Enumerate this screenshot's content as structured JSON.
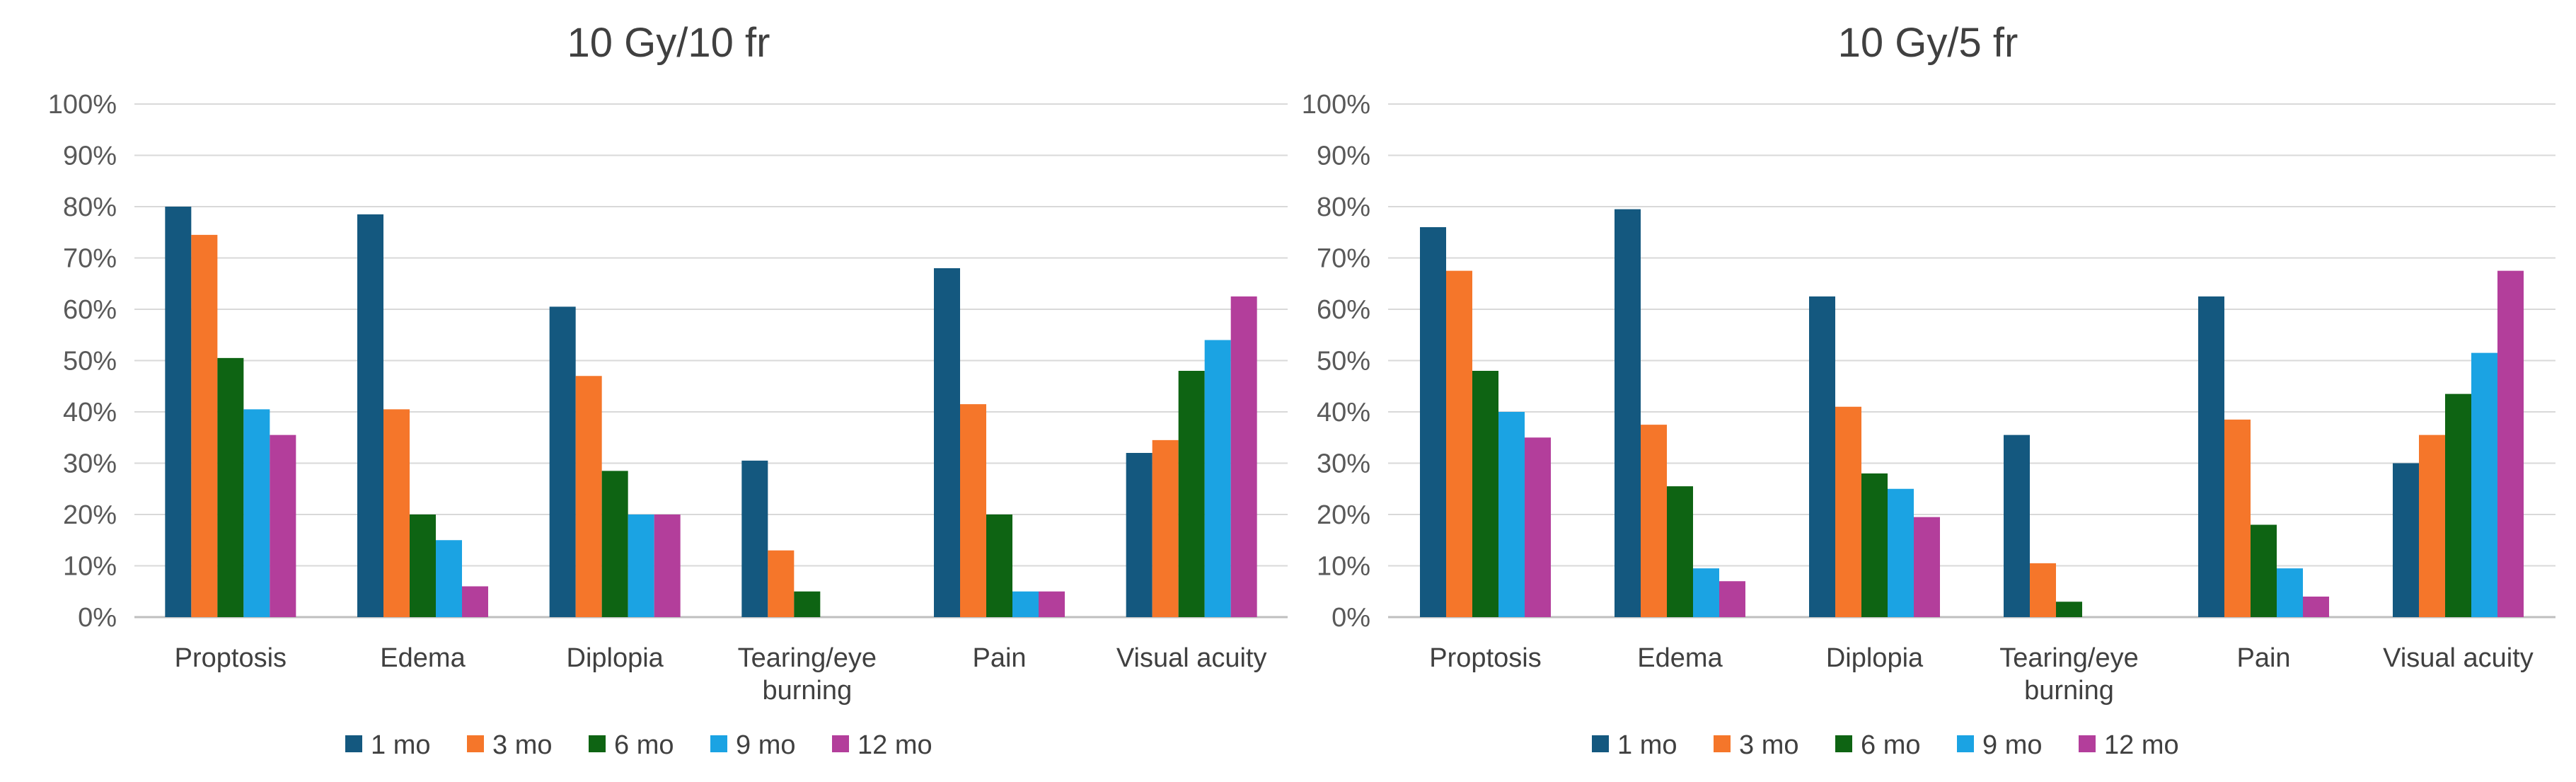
{
  "chart_data": [
    {
      "type": "bar",
      "title": "10 Gy/10 fr",
      "categories": [
        "Proptosis",
        "Edema",
        "Diplopia",
        "Tearing/eye burning",
        "Pain",
        "Visual acuity"
      ],
      "y_ticks": [
        "0%",
        "10%",
        "20%",
        "30%",
        "40%",
        "50%",
        "60%",
        "70%",
        "80%",
        "90%",
        "100%"
      ],
      "ylim": [
        0,
        100
      ],
      "grid": true,
      "legend_position": "bottom",
      "series": [
        {
          "name": "1 mo",
          "color": "#14587f",
          "values": [
            80,
            78.5,
            60.5,
            30.5,
            68,
            32
          ]
        },
        {
          "name": "3 mo",
          "color": "#f5762a",
          "values": [
            74.5,
            40.5,
            47,
            13,
            41.5,
            34.5
          ]
        },
        {
          "name": "6 mo",
          "color": "#0e6413",
          "values": [
            50.5,
            20,
            28.5,
            5,
            20,
            48
          ]
        },
        {
          "name": "9 mo",
          "color": "#1ba3e3",
          "values": [
            40.5,
            15,
            20,
            0,
            5,
            54
          ]
        },
        {
          "name": "12 mo",
          "color": "#b33e9b",
          "values": [
            35.5,
            6,
            20,
            0,
            5,
            62.5
          ]
        }
      ]
    },
    {
      "type": "bar",
      "title": "10 Gy/5 fr",
      "categories": [
        "Proptosis",
        "Edema",
        "Diplopia",
        "Tearing/eye burning",
        "Pain",
        "Visual acuity"
      ],
      "y_ticks": [
        "0%",
        "10%",
        "20%",
        "30%",
        "40%",
        "50%",
        "60%",
        "70%",
        "80%",
        "90%",
        "100%"
      ],
      "ylim": [
        0,
        100
      ],
      "grid": true,
      "legend_position": "bottom",
      "series": [
        {
          "name": "1 mo",
          "color": "#14587f",
          "values": [
            76,
            79.5,
            62.5,
            35.5,
            62.5,
            30
          ]
        },
        {
          "name": "3 mo",
          "color": "#f5762a",
          "values": [
            67.5,
            37.5,
            41,
            10.5,
            38.5,
            35.5
          ]
        },
        {
          "name": "6 mo",
          "color": "#0e6413",
          "values": [
            48,
            25.5,
            28,
            3,
            18,
            43.5
          ]
        },
        {
          "name": "9 mo",
          "color": "#1ba3e3",
          "values": [
            40,
            9.5,
            25,
            0,
            9.5,
            51.5
          ]
        },
        {
          "name": "12 mo",
          "color": "#b33e9b",
          "values": [
            35,
            7,
            19.5,
            0,
            4,
            67.5
          ]
        }
      ]
    }
  ]
}
